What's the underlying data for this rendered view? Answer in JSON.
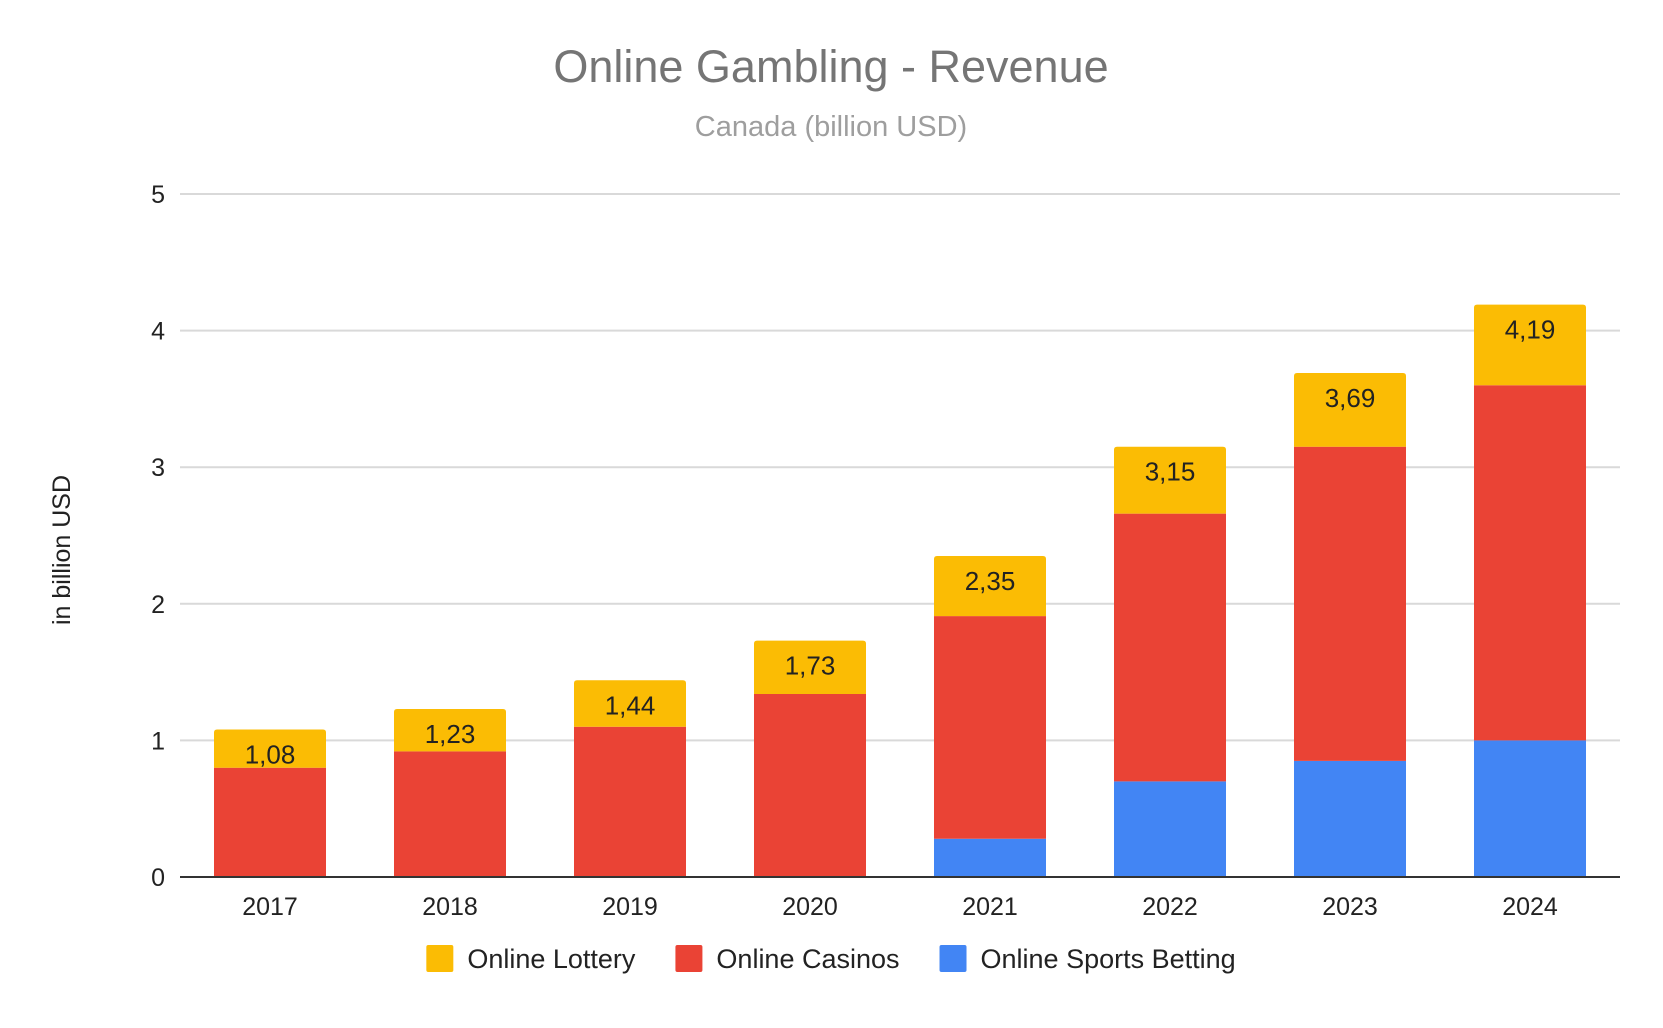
{
  "chart_data": {
    "type": "bar",
    "stacked": true,
    "title": "Online Gambling - Revenue",
    "subtitle": "Canada (billion USD)",
    "xlabel": "",
    "ylabel": "in billion USD",
    "ylim": [
      0,
      5
    ],
    "yticks": [
      0,
      1,
      2,
      3,
      4,
      5
    ],
    "ytick_labels": [
      "0",
      "1",
      "2",
      "3",
      "4",
      "5"
    ],
    "categories": [
      "2017",
      "2018",
      "2019",
      "2020",
      "2021",
      "2022",
      "2023",
      "2024"
    ],
    "series": [
      {
        "name": "Online Sports Betting",
        "color": "#4285f4",
        "values": [
          0,
          0,
          0,
          0,
          0.28,
          0.7,
          0.85,
          1.0
        ]
      },
      {
        "name": "Online Casinos",
        "color": "#ea4335",
        "values": [
          0.8,
          0.92,
          1.1,
          1.34,
          1.63,
          1.96,
          2.3,
          2.6
        ]
      },
      {
        "name": "Online Lottery",
        "color": "#fbbc04",
        "values": [
          0.28,
          0.31,
          0.34,
          0.39,
          0.44,
          0.49,
          0.54,
          0.59
        ]
      }
    ],
    "totals": [
      1.08,
      1.23,
      1.44,
      1.73,
      2.35,
      3.15,
      3.69,
      4.19
    ],
    "total_labels": [
      "1,08",
      "1,23",
      "1,44",
      "1,73",
      "2,35",
      "3,15",
      "3,69",
      "4,19"
    ],
    "legend": {
      "position": "bottom",
      "order": [
        "Online Lottery",
        "Online Casinos",
        "Online Sports Betting"
      ]
    },
    "grid": true
  }
}
